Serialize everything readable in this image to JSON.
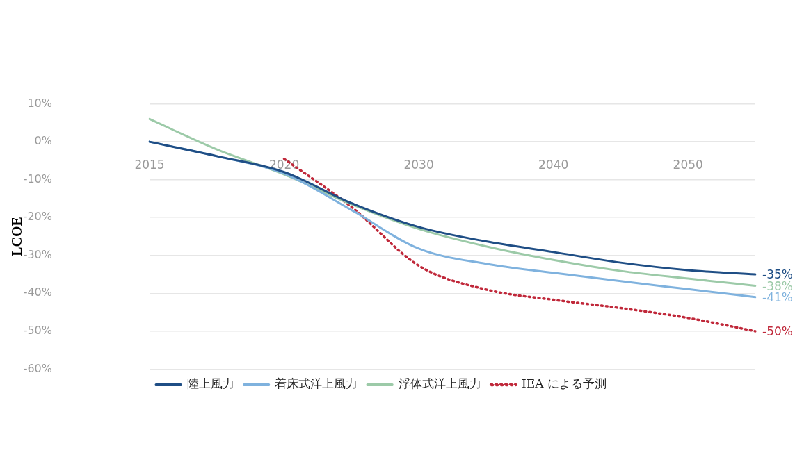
{
  "chart_data": {
    "type": "line",
    "ylabel": "LCOE",
    "categories": [
      "2015",
      null,
      "2020",
      null,
      "2030",
      null,
      "2040",
      null,
      "2050",
      null
    ],
    "ylim": [
      -60,
      10
    ],
    "yticks": [
      {
        "value": 10,
        "label": "10%"
      },
      {
        "value": 0,
        "label": "0%"
      },
      {
        "value": -10,
        "label": "-10%"
      },
      {
        "value": -20,
        "label": "-20%"
      },
      {
        "value": -30,
        "label": "-30%"
      },
      {
        "value": -40,
        "label": "-40%"
      },
      {
        "value": -50,
        "label": "-50%"
      },
      {
        "value": -60,
        "label": "-60%"
      }
    ],
    "grid": "y",
    "legend": "bottom",
    "series": [
      {
        "name": "陸上風力",
        "color": "#1f4e85",
        "line_style": "solid",
        "values": [
          0,
          -3.8,
          -8,
          -16.2,
          -22.5,
          -26.3,
          -29.1,
          -31.9,
          -33.9,
          -35
        ],
        "value_labels": [
          null,
          null,
          null,
          null,
          null,
          null,
          null,
          null,
          null,
          "-35%"
        ]
      },
      {
        "name": "着床式洋上風力",
        "color": "#7fb2de",
        "line_style": "solid",
        "values": [
          0,
          -3.8,
          -8.4,
          -18,
          -28.2,
          -32.2,
          -34.6,
          -36.8,
          -38.9,
          -41
        ],
        "value_labels": [
          null,
          null,
          null,
          null,
          null,
          null,
          null,
          null,
          null,
          "-41%"
        ]
      },
      {
        "name": "浮体式洋上風力",
        "color": "#9ccaa8",
        "line_style": "solid",
        "values": [
          6,
          -2,
          -8.6,
          -16.5,
          -23,
          -27.6,
          -31.2,
          -34.1,
          -36.1,
          -38
        ],
        "value_labels": [
          null,
          null,
          null,
          null,
          null,
          null,
          null,
          null,
          null,
          "-38%"
        ]
      },
      {
        "name": "IEA による予測",
        "color": "#c0283a",
        "line_style": "dotted",
        "values": [
          null,
          null,
          -4.5,
          -17.2,
          -32.7,
          -39,
          -41.7,
          -43.9,
          -46.5,
          -50
        ],
        "value_labels": [
          null,
          null,
          null,
          null,
          null,
          null,
          null,
          null,
          null,
          "-50%"
        ]
      }
    ]
  }
}
